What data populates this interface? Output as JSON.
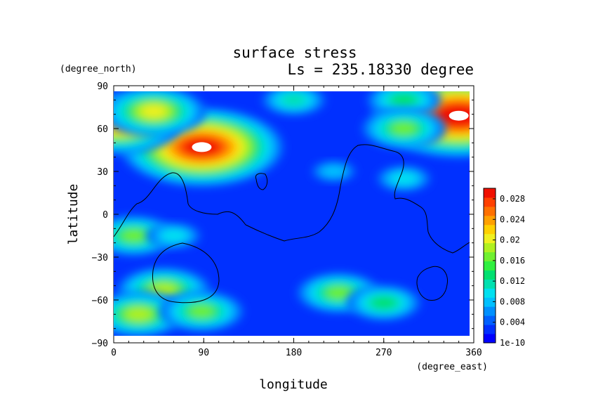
{
  "chart_data": {
    "type": "heatmap",
    "title": "surface stress",
    "subtitle": "Ls = 235.18330 degree",
    "xlabel": "longitude",
    "ylabel": "latitude",
    "x_units": "(degree_east)",
    "y_units": "(degree_north)",
    "xlim": [
      0,
      360
    ],
    "ylim": [
      -90,
      90
    ],
    "x_ticks": [
      "0",
      "90",
      "180",
      "270",
      "360"
    ],
    "y_ticks": [
      "90",
      "60",
      "30",
      "0",
      "−30",
      "−60",
      "−90"
    ],
    "grid": false,
    "colorbar": {
      "labels": [
        "0.028",
        "0.024",
        "0.02",
        "0.016",
        "0.012",
        "0.008",
        "0.004",
        "1e-10"
      ],
      "min": 0,
      "max": 0.03,
      "colors": [
        "#0000ff",
        "#0030ff",
        "#0060ff",
        "#0090ff",
        "#00c0ff",
        "#00e0f0",
        "#00e0b0",
        "#00e070",
        "#30f040",
        "#70f030",
        "#b0f020",
        "#f0f020",
        "#ffd000",
        "#ffa000",
        "#ff7000",
        "#ff4000",
        "#f01000"
      ]
    },
    "features": [
      {
        "lon": 345,
        "lat": 69,
        "value": 0.034
      },
      {
        "lon": 88,
        "lat": 47,
        "value": 0.032
      },
      {
        "lon": 5,
        "lat": 63,
        "value": 0.024
      },
      {
        "lon": 40,
        "lat": 72,
        "value": 0.02
      },
      {
        "lon": 180,
        "lat": 80,
        "value": 0.012
      },
      {
        "lon": 290,
        "lat": 80,
        "value": 0.014
      },
      {
        "lon": 290,
        "lat": 60,
        "value": 0.016
      },
      {
        "lon": 20,
        "lat": -15,
        "value": 0.016
      },
      {
        "lon": 60,
        "lat": -15,
        "value": 0.011
      },
      {
        "lon": 50,
        "lat": -53,
        "value": 0.017
      },
      {
        "lon": 25,
        "lat": -70,
        "value": 0.017
      },
      {
        "lon": 88,
        "lat": -68,
        "value": 0.016
      },
      {
        "lon": 225,
        "lat": -55,
        "value": 0.016
      },
      {
        "lon": 270,
        "lat": -62,
        "value": 0.014
      },
      {
        "lon": 290,
        "lat": 25,
        "value": 0.01
      },
      {
        "lon": 220,
        "lat": 30,
        "value": 0.009
      }
    ]
  }
}
